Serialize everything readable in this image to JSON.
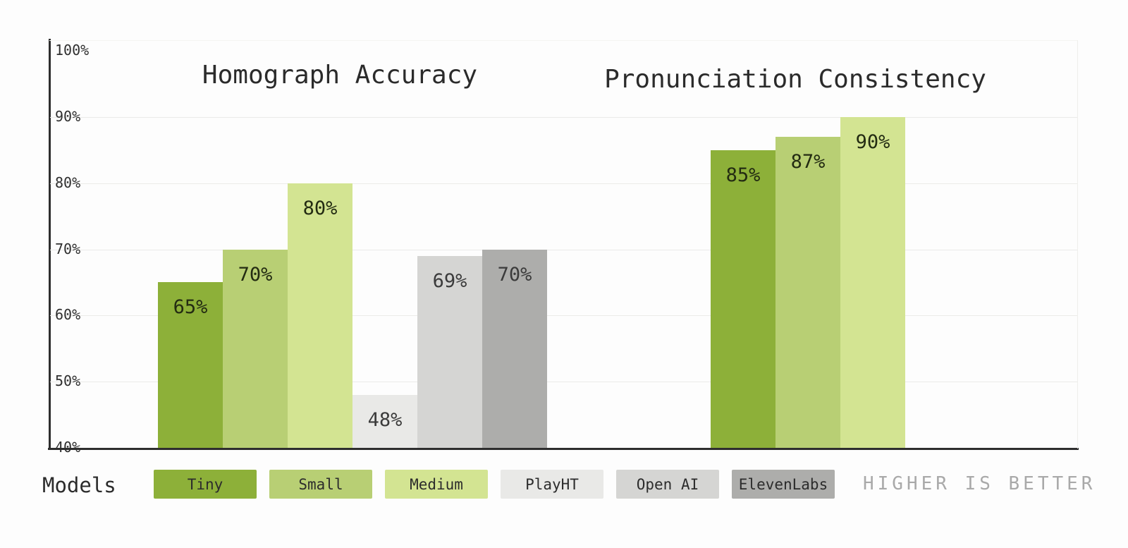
{
  "canvas": {
    "background": "#fdfdfd"
  },
  "axis": {
    "tick_labels": [
      "100%",
      "90%",
      "80%",
      "70%",
      "60%",
      "50%",
      "40%"
    ],
    "min": 40,
    "max": 100,
    "step": 10,
    "grid_values": [
      90,
      80,
      70,
      60,
      50
    ],
    "axis_color": "#2e2e2e",
    "grid_color": "#ebebe9",
    "tick_color": "#2f2f2f"
  },
  "legend": {
    "label": "Models",
    "items": [
      {
        "name": "Tiny",
        "color": "#8db039",
        "label_color": "#232b12"
      },
      {
        "name": "Small",
        "color": "#b8cf74",
        "label_color": "#232b12"
      },
      {
        "name": "Medium",
        "color": "#d3e492",
        "label_color": "#232b12"
      },
      {
        "name": "PlayHT",
        "color": "#e9e9e7",
        "label_color": "#3b3b3b"
      },
      {
        "name": "Open AI",
        "color": "#d5d5d3",
        "label_color": "#3b3b3b"
      },
      {
        "name": "ElevenLabs",
        "color": "#adadab",
        "label_color": "#3b3b3b"
      }
    ]
  },
  "note": "HIGHER IS BETTER",
  "chart_data": {
    "type": "bar",
    "unit": "%",
    "ylim": [
      40,
      100
    ],
    "grid": true,
    "legend_position": "bottom",
    "groups": [
      {
        "title": "Homograph Accuracy",
        "series": [
          "Tiny",
          "Small",
          "Medium",
          "PlayHT",
          "Open AI",
          "ElevenLabs"
        ],
        "values": [
          65,
          70,
          80,
          48,
          69,
          70
        ],
        "labels": [
          "65%",
          "70%",
          "80%",
          "48%",
          "69%",
          "70%"
        ]
      },
      {
        "title": "Pronunciation Consistency",
        "series": [
          "Tiny",
          "Small",
          "Medium"
        ],
        "values": [
          85,
          87,
          90
        ],
        "labels": [
          "85%",
          "87%",
          "90%"
        ]
      }
    ]
  }
}
